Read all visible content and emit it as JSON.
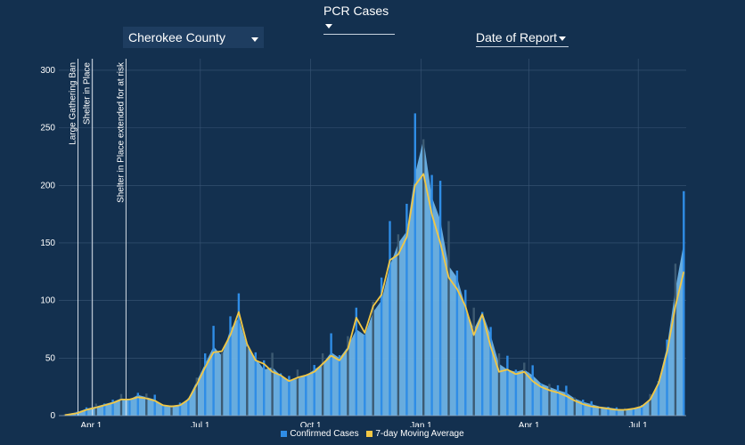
{
  "controls": {
    "metric": "PCR Cases",
    "county": "Cherokee County",
    "date_type": "Date of Report"
  },
  "colors": {
    "background": "#13304f",
    "bars": "#6db3e6",
    "bar_spikes": "#2f8de6",
    "bar_dark": "#3c5a72",
    "moving_avg": "#f2c744",
    "grid": "#3a5676"
  },
  "chart_data": {
    "type": "bar",
    "x_range": [
      "2020-03-05",
      "2021-08-10"
    ],
    "ylim": [
      0,
      310
    ],
    "yticks": [
      0,
      50,
      100,
      150,
      200,
      250,
      300
    ],
    "xticks": [
      {
        "label": "Apr 1",
        "date": "2020-04-01"
      },
      {
        "label": "Jul 1",
        "date": "2020-07-01"
      },
      {
        "label": "Oct 1",
        "date": "2020-10-01"
      },
      {
        "label": "Jan 1",
        "date": "2021-01-01"
      },
      {
        "label": "Apr 1",
        "date": "2021-04-01"
      },
      {
        "label": "Jul 1",
        "date": "2021-07-01"
      }
    ],
    "annotations": [
      {
        "date": "2020-03-21",
        "text": "Large Gathering Ban"
      },
      {
        "date": "2020-04-02",
        "text": "Shelter in Place"
      },
      {
        "date": "2020-04-30",
        "text": "Shelter in Place extended for at risk"
      }
    ],
    "series": [
      {
        "name": "Confirmed Cases",
        "kind": "bar",
        "points": [
          [
            "2020-03-10",
            1
          ],
          [
            "2020-03-20",
            3
          ],
          [
            "2020-03-28",
            6
          ],
          [
            "2020-04-05",
            8
          ],
          [
            "2020-04-12",
            10
          ],
          [
            "2020-04-19",
            12
          ],
          [
            "2020-04-26",
            15
          ],
          [
            "2020-05-03",
            14
          ],
          [
            "2020-05-10",
            18
          ],
          [
            "2020-05-17",
            16
          ],
          [
            "2020-05-24",
            14
          ],
          [
            "2020-05-31",
            9
          ],
          [
            "2020-06-07",
            8
          ],
          [
            "2020-06-14",
            9
          ],
          [
            "2020-06-21",
            15
          ],
          [
            "2020-06-28",
            30
          ],
          [
            "2020-07-05",
            45
          ],
          [
            "2020-07-12",
            60
          ],
          [
            "2020-07-19",
            52
          ],
          [
            "2020-07-26",
            75
          ],
          [
            "2020-08-02",
            85
          ],
          [
            "2020-08-09",
            60
          ],
          [
            "2020-08-16",
            50
          ],
          [
            "2020-08-23",
            40
          ],
          [
            "2020-08-30",
            42
          ],
          [
            "2020-09-06",
            35
          ],
          [
            "2020-09-13",
            30
          ],
          [
            "2020-09-20",
            32
          ],
          [
            "2020-09-27",
            35
          ],
          [
            "2020-10-04",
            40
          ],
          [
            "2020-10-11",
            45
          ],
          [
            "2020-10-18",
            55
          ],
          [
            "2020-10-25",
            50
          ],
          [
            "2020-11-01",
            60
          ],
          [
            "2020-11-08",
            75
          ],
          [
            "2020-11-15",
            70
          ],
          [
            "2020-11-22",
            90
          ],
          [
            "2020-11-29",
            100
          ],
          [
            "2020-12-06",
            130
          ],
          [
            "2020-12-13",
            150
          ],
          [
            "2020-12-20",
            160
          ],
          [
            "2020-12-27",
            210
          ],
          [
            "2021-01-03",
            240
          ],
          [
            "2021-01-10",
            190
          ],
          [
            "2021-01-17",
            170
          ],
          [
            "2021-01-24",
            130
          ],
          [
            "2021-01-31",
            120
          ],
          [
            "2021-02-07",
            95
          ],
          [
            "2021-02-14",
            75
          ],
          [
            "2021-02-21",
            90
          ],
          [
            "2021-02-28",
            70
          ],
          [
            "2021-03-07",
            45
          ],
          [
            "2021-03-14",
            40
          ],
          [
            "2021-03-21",
            38
          ],
          [
            "2021-03-28",
            40
          ],
          [
            "2021-04-04",
            35
          ],
          [
            "2021-04-11",
            28
          ],
          [
            "2021-04-18",
            25
          ],
          [
            "2021-04-25",
            22
          ],
          [
            "2021-05-02",
            20
          ],
          [
            "2021-05-09",
            15
          ],
          [
            "2021-05-16",
            12
          ],
          [
            "2021-05-23",
            10
          ],
          [
            "2021-05-30",
            8
          ],
          [
            "2021-06-06",
            7
          ],
          [
            "2021-06-13",
            6
          ],
          [
            "2021-06-20",
            5
          ],
          [
            "2021-06-27",
            6
          ],
          [
            "2021-07-04",
            8
          ],
          [
            "2021-07-11",
            15
          ],
          [
            "2021-07-18",
            30
          ],
          [
            "2021-07-25",
            60
          ],
          [
            "2021-08-01",
            110
          ],
          [
            "2021-08-08",
            150
          ]
        ]
      },
      {
        "name": "7-day Moving Average",
        "kind": "line",
        "points": [
          [
            "2020-03-10",
            0.5
          ],
          [
            "2020-03-20",
            2
          ],
          [
            "2020-03-28",
            5
          ],
          [
            "2020-04-05",
            7
          ],
          [
            "2020-04-12",
            9
          ],
          [
            "2020-04-19",
            11
          ],
          [
            "2020-04-26",
            14
          ],
          [
            "2020-05-03",
            14
          ],
          [
            "2020-05-10",
            16
          ],
          [
            "2020-05-17",
            15
          ],
          [
            "2020-05-24",
            13
          ],
          [
            "2020-05-31",
            9
          ],
          [
            "2020-06-07",
            8
          ],
          [
            "2020-06-14",
            9
          ],
          [
            "2020-06-21",
            14
          ],
          [
            "2020-06-28",
            27
          ],
          [
            "2020-07-05",
            42
          ],
          [
            "2020-07-12",
            55
          ],
          [
            "2020-07-19",
            56
          ],
          [
            "2020-07-26",
            70
          ],
          [
            "2020-08-02",
            90
          ],
          [
            "2020-08-09",
            62
          ],
          [
            "2020-08-16",
            48
          ],
          [
            "2020-08-23",
            45
          ],
          [
            "2020-08-30",
            38
          ],
          [
            "2020-09-06",
            35
          ],
          [
            "2020-09-13",
            30
          ],
          [
            "2020-09-20",
            33
          ],
          [
            "2020-09-27",
            35
          ],
          [
            "2020-10-04",
            38
          ],
          [
            "2020-10-11",
            45
          ],
          [
            "2020-10-18",
            52
          ],
          [
            "2020-10-25",
            48
          ],
          [
            "2020-11-01",
            58
          ],
          [
            "2020-11-08",
            85
          ],
          [
            "2020-11-15",
            72
          ],
          [
            "2020-11-22",
            95
          ],
          [
            "2020-11-29",
            105
          ],
          [
            "2020-12-06",
            135
          ],
          [
            "2020-12-13",
            140
          ],
          [
            "2020-12-20",
            155
          ],
          [
            "2020-12-27",
            200
          ],
          [
            "2021-01-03",
            210
          ],
          [
            "2021-01-10",
            175
          ],
          [
            "2021-01-17",
            150
          ],
          [
            "2021-01-24",
            120
          ],
          [
            "2021-01-31",
            110
          ],
          [
            "2021-02-07",
            95
          ],
          [
            "2021-02-14",
            70
          ],
          [
            "2021-02-21",
            88
          ],
          [
            "2021-02-28",
            60
          ],
          [
            "2021-03-07",
            38
          ],
          [
            "2021-03-14",
            40
          ],
          [
            "2021-03-21",
            36
          ],
          [
            "2021-03-28",
            38
          ],
          [
            "2021-04-04",
            30
          ],
          [
            "2021-04-11",
            25
          ],
          [
            "2021-04-18",
            22
          ],
          [
            "2021-04-25",
            20
          ],
          [
            "2021-05-02",
            17
          ],
          [
            "2021-05-09",
            13
          ],
          [
            "2021-05-16",
            10
          ],
          [
            "2021-05-23",
            8
          ],
          [
            "2021-05-30",
            7
          ],
          [
            "2021-06-06",
            6
          ],
          [
            "2021-06-13",
            5
          ],
          [
            "2021-06-20",
            5
          ],
          [
            "2021-06-27",
            6
          ],
          [
            "2021-07-04",
            8
          ],
          [
            "2021-07-11",
            14
          ],
          [
            "2021-07-18",
            28
          ],
          [
            "2021-07-25",
            55
          ],
          [
            "2021-08-01",
            95
          ],
          [
            "2021-08-08",
            125
          ]
        ]
      }
    ],
    "legend": {
      "position": "bottom"
    }
  }
}
